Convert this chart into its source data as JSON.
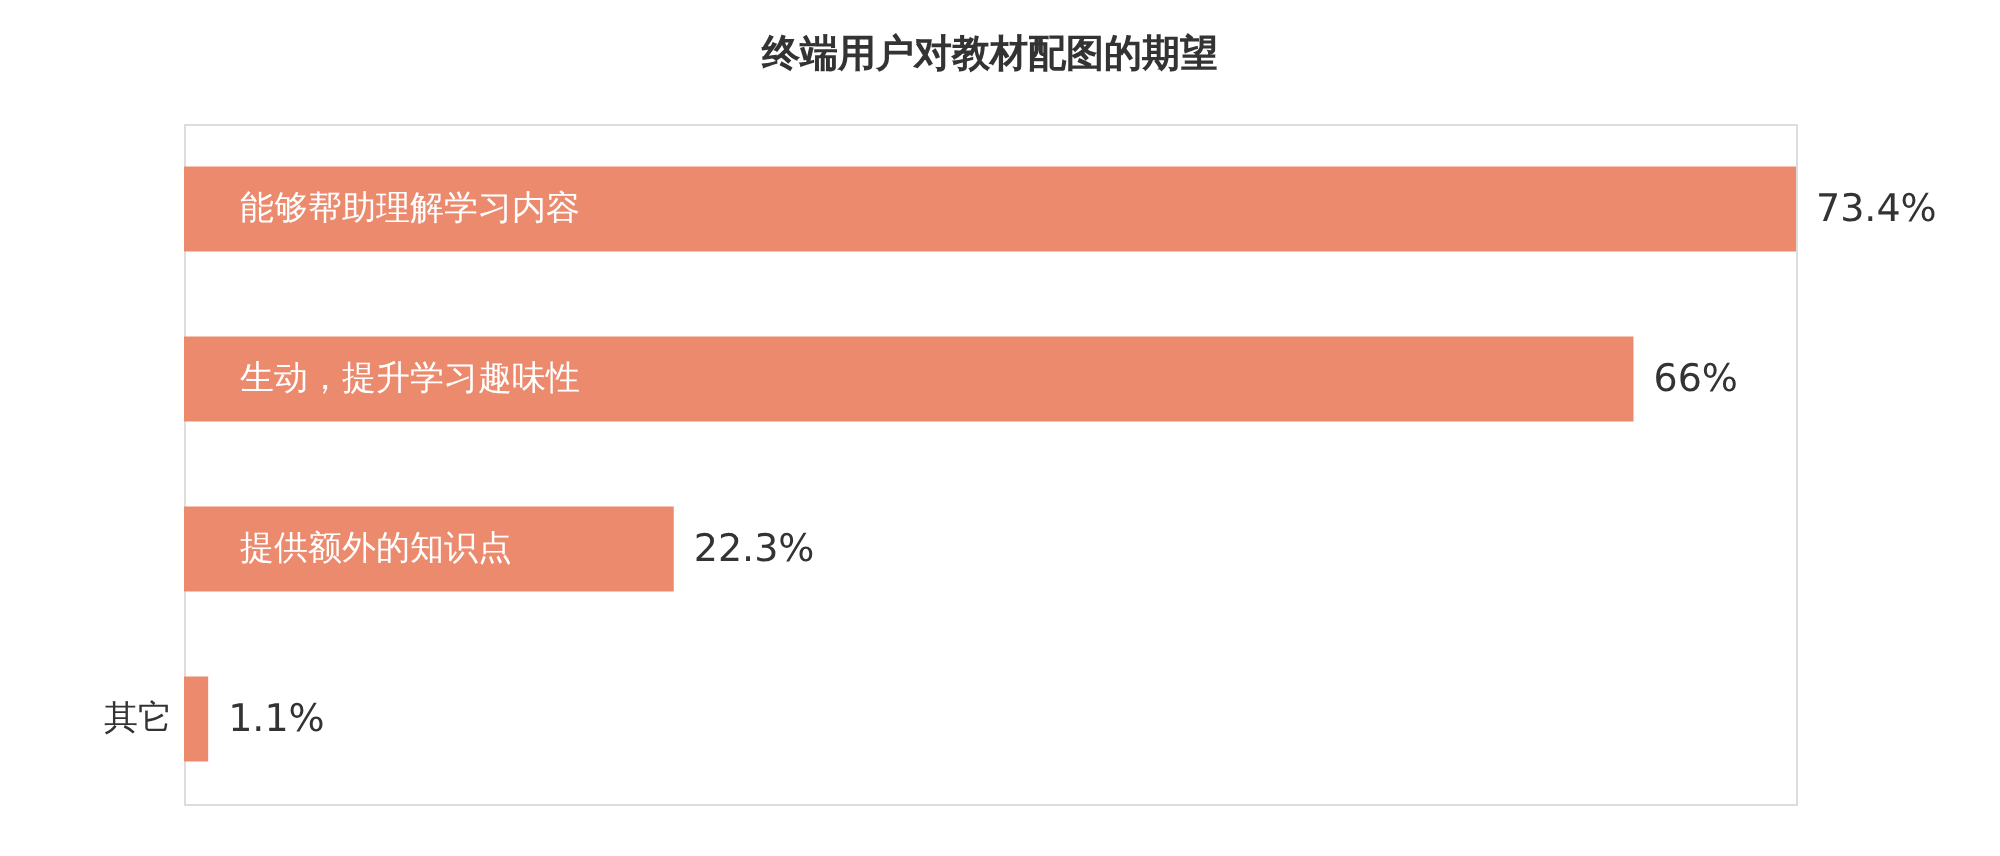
{
  "chart_data": {
    "type": "bar",
    "orientation": "horizontal",
    "title": "终端用户对教材配图的期望",
    "categories": [
      "能够帮助理解学习内容",
      "生动，提升学习趣味性",
      "提供额外的知识点",
      "其它"
    ],
    "values": [
      73.4,
      66,
      22.3,
      1.1
    ],
    "value_labels": [
      "73.4%",
      "66%",
      "22.3%",
      "1.1%"
    ],
    "color": "#ec8a6e",
    "tick_labels": false
  }
}
